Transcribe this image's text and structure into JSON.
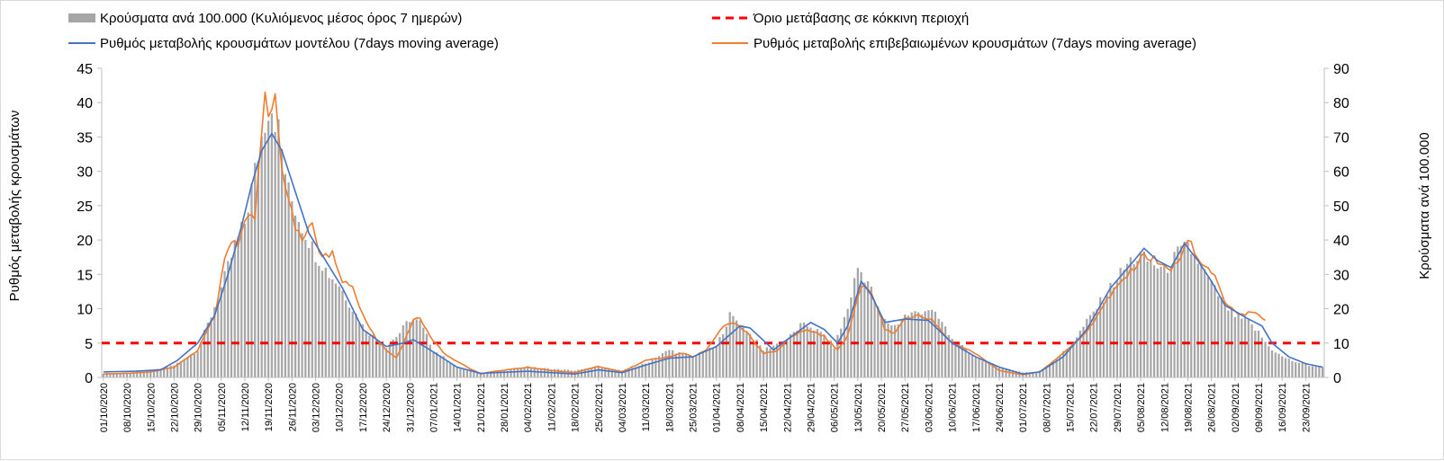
{
  "chart_data": {
    "type": "bar+line",
    "title": "",
    "legend": [
      {
        "key": "bars",
        "label": "Κρούσματα ανά 100.000 (Κυλιόμενος μέσος όρος 7 ημερών)",
        "color": "#a6a6a6"
      },
      {
        "key": "threshold",
        "label": "Όριο μετάβασης σε κόκκινη περιοχή",
        "color": "#ff0000"
      },
      {
        "key": "model",
        "label": "Ρυθμός μεταβολής κρουσμάτων μοντέλου (7days moving average)",
        "color": "#4472c4"
      },
      {
        "key": "confirmed",
        "label": "Ρυθμός μεταβολής επιβεβαιωμένων κρουσμάτων (7days moving average)",
        "color": "#ed7d31"
      }
    ],
    "ylabel_left": "Ρυθμός μεταβολής κρουσμάτων",
    "ylabel_right": "Κρούσματα ανά 100.000",
    "ylim_left": [
      0,
      45
    ],
    "ylim_right": [
      0,
      90
    ],
    "yticks_left": [
      "0",
      "5",
      "10",
      "15",
      "20",
      "25",
      "30",
      "35",
      "40",
      "45"
    ],
    "yticks_right": [
      "0",
      "10",
      "20",
      "30",
      "40",
      "50",
      "60",
      "70",
      "80",
      "90"
    ],
    "threshold_value": 5,
    "start_date": "2020-10-01",
    "end_date": "2021-09-28",
    "x_tick_labels": [
      "01/10/2020",
      "08/10/2020",
      "15/10/2020",
      "22/10/2020",
      "29/10/2020",
      "05/11/2020",
      "12/11/2020",
      "19/11/2020",
      "26/11/2020",
      "03/12/2020",
      "10/12/2020",
      "17/12/2020",
      "24/12/2020",
      "31/12/2020",
      "07/01/2021",
      "14/01/2021",
      "21/01/2021",
      "28/01/2021",
      "04/02/2021",
      "11/02/2021",
      "18/02/2021",
      "25/02/2021",
      "04/03/2021",
      "11/03/2021",
      "18/03/2021",
      "25/03/2021",
      "01/04/2021",
      "08/04/2021",
      "15/04/2021",
      "22/04/2021",
      "29/04/2021",
      "06/05/2021",
      "13/05/2021",
      "20/05/2021",
      "27/05/2021",
      "03/06/2021",
      "10/06/2021",
      "17/06/2021",
      "24/06/2021",
      "01/07/2021",
      "08/07/2021",
      "15/07/2021",
      "22/07/2021",
      "29/07/2021",
      "05/08/2021",
      "12/08/2021",
      "19/08/2021",
      "26/08/2021",
      "02/09/2021",
      "09/09/2021",
      "16/09/2021",
      "23/09/2021"
    ],
    "cases_per_100k_keypoints": [
      [
        "2020-10-01",
        1.2
      ],
      [
        "2020-10-08",
        1.4
      ],
      [
        "2020-10-15",
        1.9
      ],
      [
        "2020-10-22",
        3.5
      ],
      [
        "2020-10-29",
        8
      ],
      [
        "2020-11-02",
        18
      ],
      [
        "2020-11-05",
        26
      ],
      [
        "2020-11-09",
        38
      ],
      [
        "2020-11-12",
        45
      ],
      [
        "2020-11-15",
        60
      ],
      [
        "2020-11-18",
        75
      ],
      [
        "2020-11-19",
        79
      ],
      [
        "2020-11-20",
        79
      ],
      [
        "2020-11-22",
        72
      ],
      [
        "2020-11-25",
        54
      ],
      [
        "2020-11-29",
        44
      ],
      [
        "2020-12-03",
        36
      ],
      [
        "2020-12-07",
        30
      ],
      [
        "2020-12-10",
        27
      ],
      [
        "2020-12-14",
        20
      ],
      [
        "2020-12-17",
        15
      ],
      [
        "2020-12-21",
        11
      ],
      [
        "2020-12-24",
        9
      ],
      [
        "2020-12-28",
        13
      ],
      [
        "2020-12-31",
        17
      ],
      [
        "2021-01-03",
        16
      ],
      [
        "2021-01-07",
        8
      ],
      [
        "2021-01-14",
        3
      ],
      [
        "2021-01-21",
        1.5
      ],
      [
        "2021-01-28",
        1.8
      ],
      [
        "2021-02-04",
        3
      ],
      [
        "2021-02-11",
        2.5
      ],
      [
        "2021-02-18",
        2
      ],
      [
        "2021-02-25",
        3
      ],
      [
        "2021-03-04",
        2
      ],
      [
        "2021-03-11",
        4
      ],
      [
        "2021-03-18",
        8
      ],
      [
        "2021-03-25",
        6
      ],
      [
        "2021-04-01",
        9
      ],
      [
        "2021-04-05",
        18
      ],
      [
        "2021-04-08",
        16
      ],
      [
        "2021-04-15",
        8
      ],
      [
        "2021-04-22",
        11
      ],
      [
        "2021-04-26",
        15
      ],
      [
        "2021-04-29",
        15
      ],
      [
        "2021-05-03",
        12
      ],
      [
        "2021-05-06",
        9
      ],
      [
        "2021-05-10",
        20
      ],
      [
        "2021-05-13",
        32
      ],
      [
        "2021-05-16",
        28
      ],
      [
        "2021-05-20",
        17
      ],
      [
        "2021-05-24",
        15
      ],
      [
        "2021-05-27",
        18
      ],
      [
        "2021-05-31",
        19
      ],
      [
        "2021-06-03",
        20
      ],
      [
        "2021-06-07",
        16
      ],
      [
        "2021-06-10",
        11
      ],
      [
        "2021-06-17",
        6
      ],
      [
        "2021-06-24",
        3
      ],
      [
        "2021-07-01",
        1.5
      ],
      [
        "2021-07-05",
        1.5
      ],
      [
        "2021-07-08",
        3
      ],
      [
        "2021-07-15",
        9
      ],
      [
        "2021-07-22",
        19
      ],
      [
        "2021-07-29",
        29
      ],
      [
        "2021-08-02",
        34
      ],
      [
        "2021-08-05",
        35
      ],
      [
        "2021-08-09",
        33
      ],
      [
        "2021-08-12",
        31
      ],
      [
        "2021-08-16",
        36
      ],
      [
        "2021-08-19",
        38
      ],
      [
        "2021-08-22",
        34
      ],
      [
        "2021-08-26",
        27
      ],
      [
        "2021-08-30",
        21
      ],
      [
        "2021-09-02",
        18
      ],
      [
        "2021-09-06",
        16
      ],
      [
        "2021-09-09",
        13
      ],
      [
        "2021-09-12",
        9
      ],
      [
        "2021-09-16",
        6
      ],
      [
        "2021-09-20",
        4.5
      ],
      [
        "2021-09-24",
        3.5
      ],
      [
        "2021-09-28",
        3
      ]
    ],
    "model_rate_keypoints": [
      [
        "2020-10-01",
        0.8
      ],
      [
        "2020-10-10",
        0.9
      ],
      [
        "2020-10-18",
        1.1
      ],
      [
        "2020-10-23",
        2.5
      ],
      [
        "2020-10-29",
        5
      ],
      [
        "2020-11-03",
        9
      ],
      [
        "2020-11-07",
        15
      ],
      [
        "2020-11-11",
        22
      ],
      [
        "2020-11-14",
        28
      ],
      [
        "2020-11-17",
        33
      ],
      [
        "2020-11-20",
        35.5
      ],
      [
        "2020-11-23",
        33
      ],
      [
        "2020-11-27",
        27
      ],
      [
        "2020-12-01",
        21
      ],
      [
        "2020-12-06",
        17
      ],
      [
        "2020-12-11",
        13
      ],
      [
        "2020-12-17",
        7
      ],
      [
        "2020-12-24",
        4.5
      ],
      [
        "2020-12-29",
        5
      ],
      [
        "2021-01-01",
        5.5
      ],
      [
        "2021-01-06",
        4
      ],
      [
        "2021-01-14",
        1.5
      ],
      [
        "2021-01-21",
        0.6
      ],
      [
        "2021-02-04",
        0.9
      ],
      [
        "2021-02-18",
        0.5
      ],
      [
        "2021-02-25",
        1.1
      ],
      [
        "2021-03-04",
        0.7
      ],
      [
        "2021-03-11",
        1.8
      ],
      [
        "2021-03-18",
        2.8
      ],
      [
        "2021-03-25",
        3
      ],
      [
        "2021-04-01",
        4.5
      ],
      [
        "2021-04-08",
        7.5
      ],
      [
        "2021-04-11",
        7.2
      ],
      [
        "2021-04-18",
        4
      ],
      [
        "2021-04-22",
        5.5
      ],
      [
        "2021-04-29",
        8
      ],
      [
        "2021-05-03",
        7
      ],
      [
        "2021-05-07",
        5
      ],
      [
        "2021-05-10",
        7.5
      ],
      [
        "2021-05-14",
        14
      ],
      [
        "2021-05-17",
        12
      ],
      [
        "2021-05-21",
        8
      ],
      [
        "2021-05-27",
        8.5
      ],
      [
        "2021-06-03",
        8.3
      ],
      [
        "2021-06-10",
        5
      ],
      [
        "2021-06-17",
        3
      ],
      [
        "2021-06-24",
        1.5
      ],
      [
        "2021-07-01",
        0.5
      ],
      [
        "2021-07-06",
        0.8
      ],
      [
        "2021-07-13",
        3
      ],
      [
        "2021-07-20",
        7
      ],
      [
        "2021-07-27",
        13
      ],
      [
        "2021-08-03",
        17
      ],
      [
        "2021-08-06",
        18.8
      ],
      [
        "2021-08-10",
        17
      ],
      [
        "2021-08-14",
        16
      ],
      [
        "2021-08-18",
        19.5
      ],
      [
        "2021-08-22",
        17
      ],
      [
        "2021-08-26",
        14
      ],
      [
        "2021-08-30",
        10.5
      ],
      [
        "2021-09-06",
        8.5
      ],
      [
        "2021-09-10",
        7.5
      ],
      [
        "2021-09-13",
        5
      ],
      [
        "2021-09-18",
        3
      ],
      [
        "2021-09-23",
        2
      ],
      [
        "2021-09-28",
        1.5
      ]
    ],
    "confirmed_rate_keypoints": [
      [
        "2020-10-01",
        0.5
      ],
      [
        "2020-10-08",
        0.6
      ],
      [
        "2020-10-15",
        0.8
      ],
      [
        "2020-10-22",
        1.5
      ],
      [
        "2020-10-29",
        4
      ],
      [
        "2020-11-03",
        9
      ],
      [
        "2020-11-06",
        17
      ],
      [
        "2020-11-08",
        20
      ],
      [
        "2020-11-10",
        19
      ],
      [
        "2020-11-12",
        23
      ],
      [
        "2020-11-15",
        23.5
      ],
      [
        "2020-11-18",
        41
      ],
      [
        "2020-11-19",
        38.5
      ],
      [
        "2020-11-20",
        40
      ],
      [
        "2020-11-21",
        41
      ],
      [
        "2020-11-23",
        30
      ],
      [
        "2020-11-27",
        22
      ],
      [
        "2020-11-29",
        20
      ],
      [
        "2020-12-02",
        23
      ],
      [
        "2020-12-04",
        18
      ],
      [
        "2020-12-08",
        18
      ],
      [
        "2020-12-11",
        14
      ],
      [
        "2020-12-14",
        13
      ],
      [
        "2020-12-17",
        9
      ],
      [
        "2020-12-21",
        5.5
      ],
      [
        "2020-12-24",
        4
      ],
      [
        "2020-12-27",
        2.8
      ],
      [
        "2020-12-30",
        6
      ],
      [
        "2021-01-01",
        8.5
      ],
      [
        "2021-01-03",
        8.8
      ],
      [
        "2021-01-06",
        6
      ],
      [
        "2021-01-10",
        3.5
      ],
      [
        "2021-01-17",
        1.5
      ],
      [
        "2021-01-21",
        0.5
      ],
      [
        "2021-01-24",
        0.8
      ],
      [
        "2021-02-04",
        1.5
      ],
      [
        "2021-02-11",
        1
      ],
      [
        "2021-02-18",
        0.7
      ],
      [
        "2021-02-25",
        1.6
      ],
      [
        "2021-03-04",
        0.8
      ],
      [
        "2021-03-11",
        2.5
      ],
      [
        "2021-03-18",
        3
      ],
      [
        "2021-03-22",
        3.5
      ],
      [
        "2021-03-25",
        3
      ],
      [
        "2021-03-29",
        4
      ],
      [
        "2021-04-03",
        7.5
      ],
      [
        "2021-04-06",
        8
      ],
      [
        "2021-04-10",
        6.5
      ],
      [
        "2021-04-15",
        3.5
      ],
      [
        "2021-04-19",
        3.8
      ],
      [
        "2021-04-23",
        6
      ],
      [
        "2021-04-28",
        7
      ],
      [
        "2021-05-03",
        6
      ],
      [
        "2021-05-07",
        4
      ],
      [
        "2021-05-10",
        6
      ],
      [
        "2021-05-14",
        13.5
      ],
      [
        "2021-05-17",
        12.5
      ],
      [
        "2021-05-21",
        7
      ],
      [
        "2021-05-24",
        6.5
      ],
      [
        "2021-05-27",
        8.5
      ],
      [
        "2021-05-31",
        9
      ],
      [
        "2021-06-04",
        8.5
      ],
      [
        "2021-06-10",
        5
      ],
      [
        "2021-06-17",
        3.5
      ],
      [
        "2021-06-24",
        1
      ],
      [
        "2021-07-01",
        0.4
      ],
      [
        "2021-07-06",
        0.8
      ],
      [
        "2021-07-13",
        3.5
      ],
      [
        "2021-07-20",
        6.5
      ],
      [
        "2021-07-27",
        12
      ],
      [
        "2021-08-03",
        16
      ],
      [
        "2021-08-06",
        17.8
      ],
      [
        "2021-08-10",
        17
      ],
      [
        "2021-08-14",
        16
      ],
      [
        "2021-08-17",
        17.5
      ],
      [
        "2021-08-19",
        20
      ],
      [
        "2021-08-23",
        17
      ],
      [
        "2021-08-27",
        15
      ],
      [
        "2021-08-30",
        11
      ],
      [
        "2021-09-03",
        9
      ],
      [
        "2021-09-07",
        9.5
      ],
      [
        "2021-09-11",
        8.5
      ]
    ]
  }
}
